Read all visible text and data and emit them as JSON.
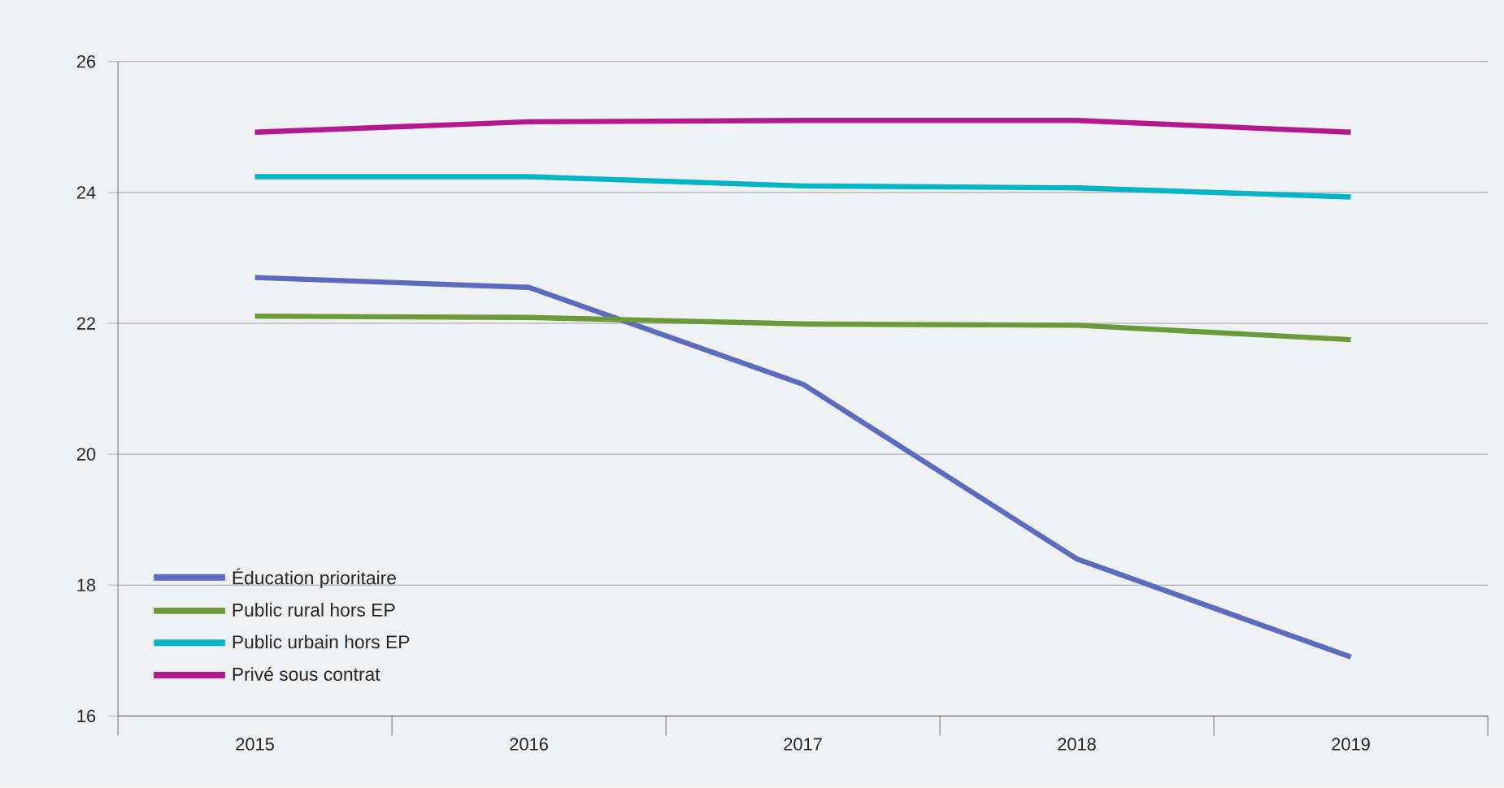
{
  "chart_data": {
    "type": "line",
    "categories": [
      "2015",
      "2016",
      "2017",
      "2018",
      "2019"
    ],
    "series": [
      {
        "name": "Éducation prioritaire",
        "color": "#5b6bbf",
        "values": [
          22.7,
          22.55,
          21.07,
          18.4,
          16.9
        ]
      },
      {
        "name": "Public rural hors EP",
        "color": "#6a9a3a",
        "values": [
          22.11,
          22.09,
          21.99,
          21.97,
          21.75
        ]
      },
      {
        "name": "Public urbain hors EP",
        "color": "#00b5c8",
        "values": [
          24.24,
          24.24,
          24.1,
          24.07,
          23.93
        ]
      },
      {
        "name": "Privé sous contrat",
        "color": "#b5178f",
        "values": [
          24.92,
          25.08,
          25.1,
          25.1,
          24.92
        ]
      }
    ],
    "ylim": [
      16,
      26
    ],
    "yticks": [
      16,
      18,
      20,
      22,
      24,
      26
    ],
    "grid": "y",
    "legend": "bottom left",
    "marker": "none",
    "line_style": "solid"
  }
}
